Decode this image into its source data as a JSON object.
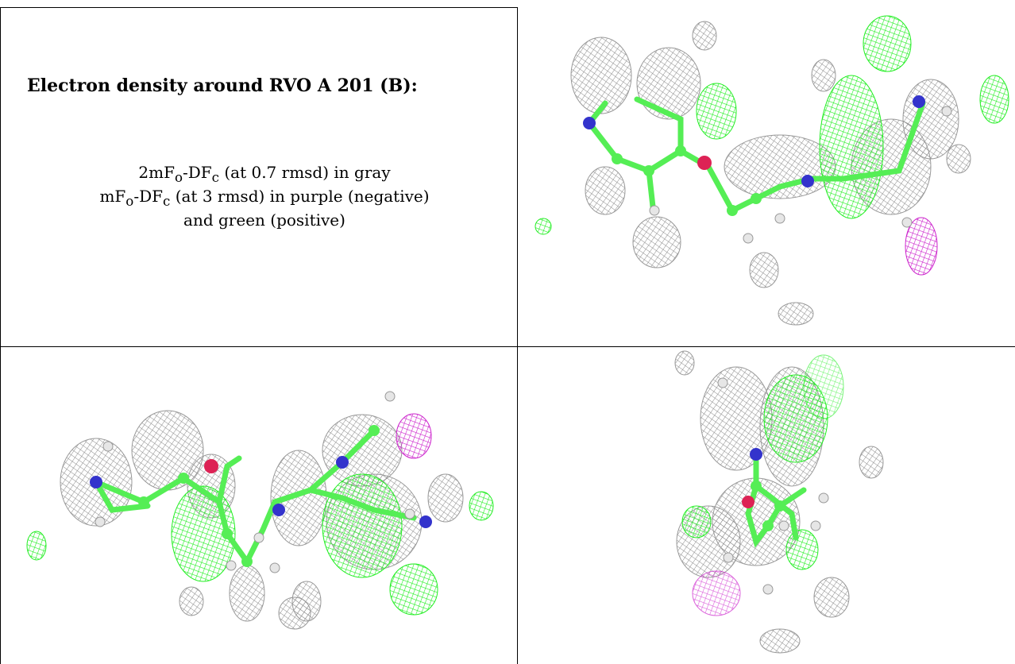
{
  "title": "Electron density around RVO A 201 (B):",
  "legend": {
    "line1_prefix": "2mF",
    "line1_sub1": "o",
    "line1_mid": "-DF",
    "line1_sub2": "c",
    "line1_suffix": " (at 0.7 rmsd) in gray",
    "line2_prefix": "mF",
    "line2_sub1": "o",
    "line2_mid": "-DF",
    "line2_sub2": "c",
    "line2_suffix": " (at 3 rmsd) in purple (negative)",
    "line3": "and green (positive)"
  },
  "colors": {
    "positive_density": "#22ee22",
    "negative_density": "#cc22cc",
    "map_2fofc": "#8a8a8a",
    "carbon": "#55ee55",
    "nitrogen": "#3333cc",
    "oxygen": "#dd2255",
    "hydrogen": "#e6e6e6"
  }
}
